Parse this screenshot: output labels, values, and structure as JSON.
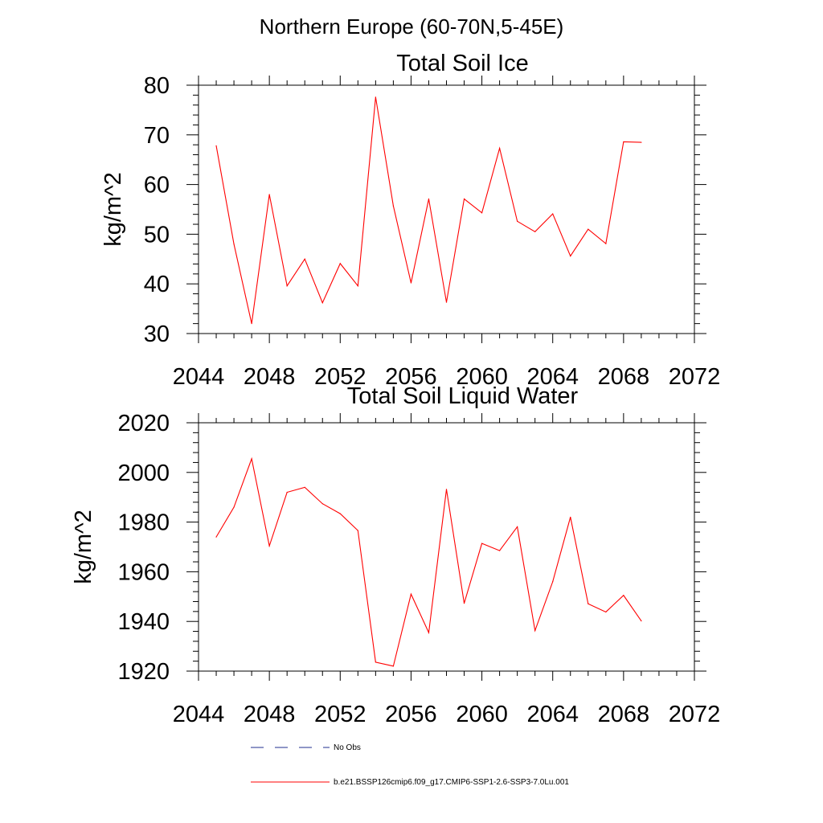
{
  "page_title": "Northern Europe (60-70N,5-45E)",
  "colors": {
    "series": "#ff0000",
    "obs": "#1f2f8f",
    "axis": "#000000"
  },
  "legend": {
    "entries": [
      {
        "label": "No Obs",
        "style": "dashed",
        "color": "#1f2f8f"
      },
      {
        "label": "b.e21.BSSP126cmip6.f09_g17.CMIP6-SSP1-2.6-SSP3-7.0Lu.001",
        "style": "solid",
        "color": "#ff0000"
      }
    ]
  },
  "chart_data": [
    {
      "type": "line",
      "title": "Total Soil Ice",
      "xlabel": "",
      "ylabel": "kg/m^2",
      "xlim": [
        2044,
        2072
      ],
      "ylim": [
        30,
        80
      ],
      "xticks": [
        2044,
        2048,
        2052,
        2056,
        2060,
        2064,
        2068,
        2072
      ],
      "yticks": [
        30,
        40,
        50,
        60,
        70,
        80
      ],
      "x": [
        2045,
        2046,
        2047,
        2048,
        2049,
        2050,
        2051,
        2052,
        2053,
        2054,
        2055,
        2056,
        2057,
        2058,
        2059,
        2060,
        2061,
        2062,
        2063,
        2064,
        2065,
        2066,
        2067,
        2068,
        2069
      ],
      "series": [
        {
          "name": "b.e21.BSSP126cmip6.f09_g17.CMIP6-SSP1-2.6-SSP3-7.0Lu.001",
          "values": [
            67.8,
            48.0,
            32.0,
            58.0,
            39.6,
            45.0,
            36.2,
            44.1,
            39.6,
            77.6,
            55.7,
            40.2,
            57.1,
            36.3,
            57.1,
            54.3,
            67.3,
            52.6,
            50.5,
            54.1,
            45.6,
            51.0,
            48.1,
            68.6,
            68.5
          ]
        }
      ]
    },
    {
      "type": "line",
      "title": "Total Soil Liquid Water",
      "xlabel": "",
      "ylabel": "kg/m^2",
      "xlim": [
        2044,
        2072
      ],
      "ylim": [
        1920,
        2020
      ],
      "xticks": [
        2044,
        2048,
        2052,
        2056,
        2060,
        2064,
        2068,
        2072
      ],
      "yticks": [
        1920,
        1940,
        1960,
        1980,
        2000,
        2020
      ],
      "x": [
        2045,
        2046,
        2047,
        2048,
        2049,
        2050,
        2051,
        2052,
        2053,
        2054,
        2055,
        2056,
        2057,
        2058,
        2059,
        2060,
        2061,
        2062,
        2063,
        2064,
        2065,
        2066,
        2067,
        2068,
        2069
      ],
      "series": [
        {
          "name": "b.e21.BSSP126cmip6.f09_g17.CMIP6-SSP1-2.6-SSP3-7.0Lu.001",
          "values": [
            1974,
            1986,
            2005.5,
            1970.4,
            1992,
            1994,
            1987.4,
            1983.4,
            1976.6,
            1923.6,
            1922,
            1951,
            1935.5,
            1993.2,
            1947.3,
            1971.4,
            1968.5,
            1978.1,
            1936.3,
            1956,
            1982,
            1947.1,
            1943.8,
            1950.5,
            1940.2
          ]
        }
      ]
    }
  ]
}
